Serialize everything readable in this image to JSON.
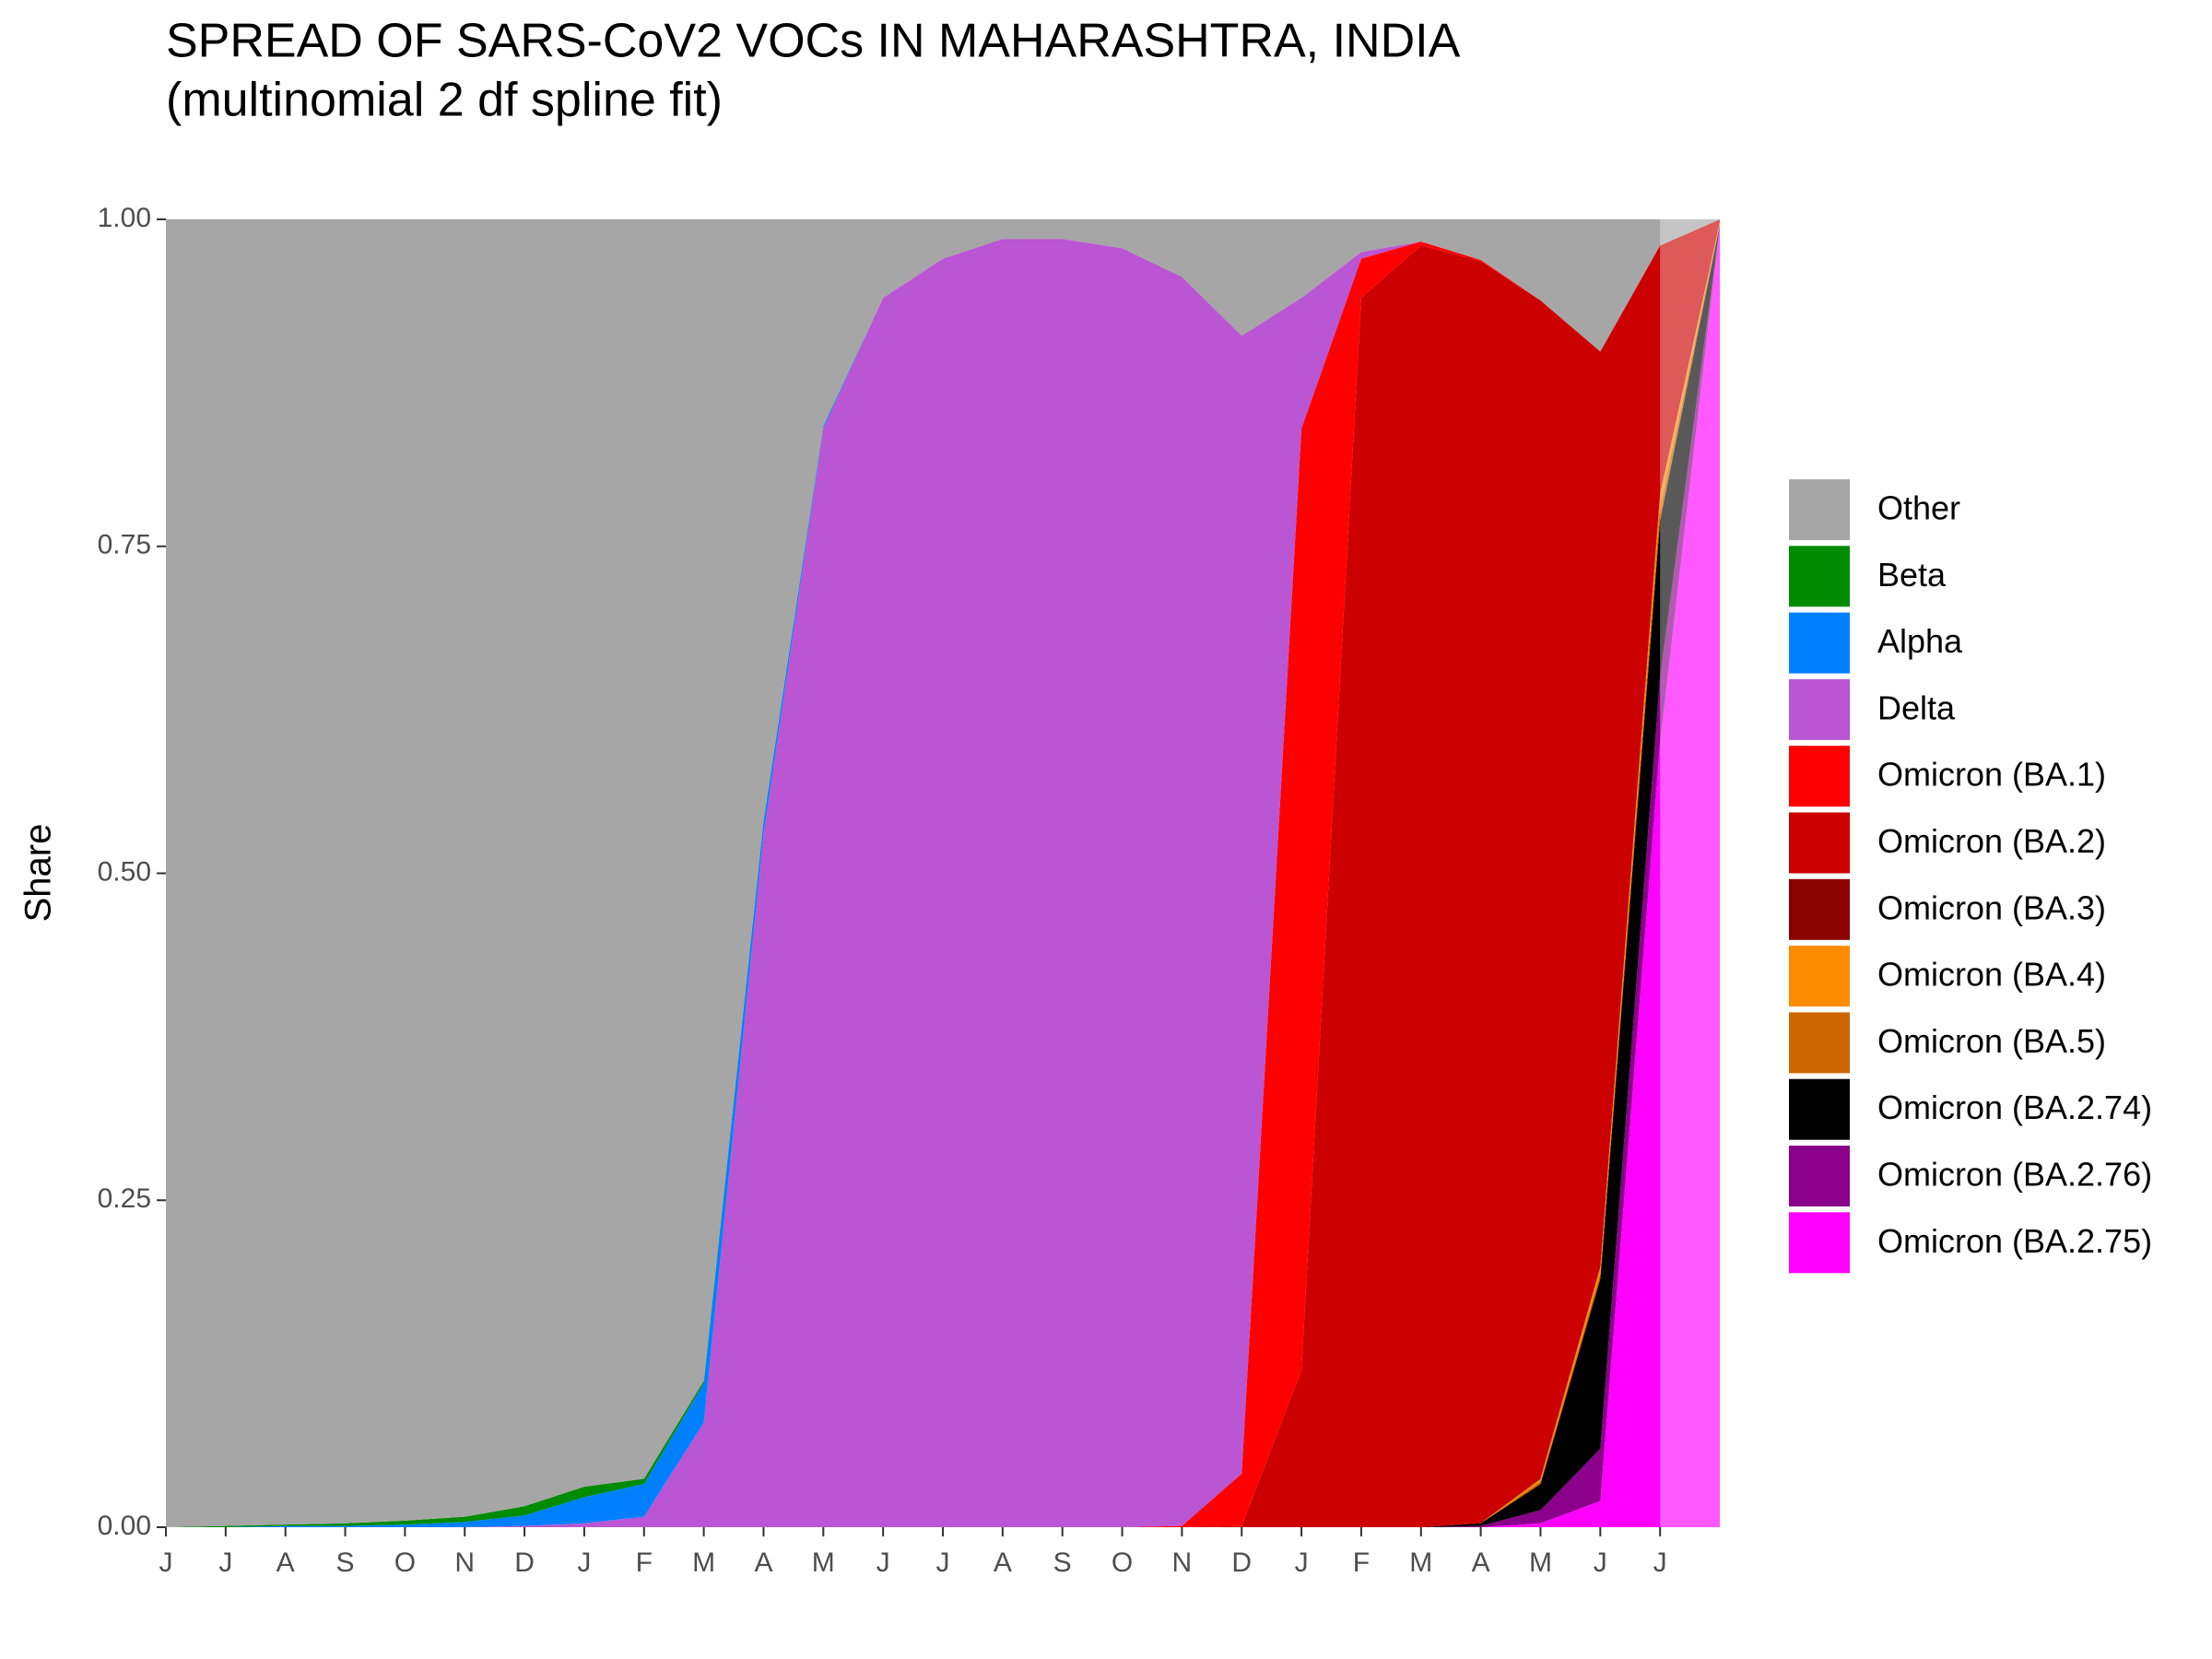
{
  "chart_data": {
    "type": "stacked_area",
    "title": "SPREAD OF SARS-CoV2 VOCs IN MAHARASHTRA, INDIA",
    "subtitle": "(multinomial 2 df spline fit)",
    "y_label": "Share",
    "categories": [
      "J",
      "J",
      "A",
      "S",
      "O",
      "N",
      "D",
      "J",
      "F",
      "M",
      "A",
      "M",
      "J",
      "J",
      "A",
      "S",
      "O",
      "N",
      "D",
      "J",
      "F",
      "M",
      "A",
      "M",
      "J",
      "J",
      null
    ],
    "ylim": [
      0,
      1
    ],
    "yticks": [
      {
        "value": 0,
        "label": "0.00"
      },
      {
        "value": 0.25,
        "label": "0.25"
      },
      {
        "value": 0.5,
        "label": "0.50"
      },
      {
        "value": 0.75,
        "label": "0.75"
      },
      {
        "value": 1,
        "label": "1.00"
      }
    ],
    "grid": false,
    "legend": "right",
    "series": [
      {
        "name": "Other",
        "color": "#a6a6a6",
        "values": [
          1,
          0.999,
          0.998,
          0.997,
          0.995,
          0.992,
          0.984,
          0.969,
          0.963,
          0.888,
          0.46,
          0.158,
          0.06,
          0.03,
          0.015,
          0.015,
          0.022,
          0.044,
          0.089,
          0.06,
          0.025,
          0.017,
          0.031,
          0.062,
          0.101,
          0.02,
          0
        ]
      },
      {
        "name": "Beta",
        "color": "#008b00",
        "values": [
          0,
          0.001,
          0.001,
          0.002,
          0.003,
          0.004,
          0.007,
          0.008,
          0.004,
          0.002,
          0,
          0,
          0,
          0,
          0,
          0,
          0,
          0,
          0,
          0,
          0,
          0,
          0,
          0,
          0,
          0,
          0
        ]
      },
      {
        "name": "Alpha",
        "color": "#0080ff",
        "values": [
          0,
          0,
          0.001,
          0.001,
          0.002,
          0.004,
          0.008,
          0.02,
          0.025,
          0.03,
          0.01,
          0.002,
          0,
          0,
          0,
          0,
          0,
          0,
          0,
          0,
          0,
          0,
          0,
          0,
          0,
          0,
          0
        ]
      },
      {
        "name": "Delta",
        "color": "#ba55d3",
        "values": [
          0,
          0,
          0,
          0,
          0,
          0,
          0.001,
          0.003,
          0.008,
          0.08,
          0.53,
          0.84,
          0.94,
          0.97,
          0.985,
          0.985,
          0.978,
          0.955,
          0.87,
          0.1,
          0.005,
          0,
          0,
          0,
          0,
          0,
          0
        ]
      },
      {
        "name": "Omicron (BA.1)",
        "color": "#ff0000",
        "values": [
          0,
          0,
          0,
          0,
          0,
          0,
          0,
          0,
          0,
          0,
          0,
          0,
          0,
          0,
          0,
          0,
          0,
          0.001,
          0.04,
          0.72,
          0.03,
          0.003,
          0.001,
          0,
          0,
          0,
          0
        ]
      },
      {
        "name": "Omicron (BA.2)",
        "color": "#cc0000",
        "values": [
          0,
          0,
          0,
          0,
          0,
          0,
          0,
          0,
          0,
          0,
          0,
          0,
          0,
          0,
          0,
          0,
          0,
          0,
          0.001,
          0.12,
          0.94,
          0.98,
          0.965,
          0.9,
          0.7,
          0.19,
          0.002
        ]
      },
      {
        "name": "Omicron (BA.3)",
        "color": "#8b0000",
        "values": [
          0,
          0,
          0,
          0,
          0,
          0,
          0,
          0,
          0,
          0,
          0,
          0,
          0,
          0,
          0,
          0,
          0,
          0,
          0,
          0,
          0,
          0,
          0,
          0.001,
          0,
          0,
          0
        ]
      },
      {
        "name": "Omicron (BA.4)",
        "color": "#ff8c00",
        "values": [
          0,
          0,
          0,
          0,
          0,
          0,
          0,
          0,
          0,
          0,
          0,
          0,
          0,
          0,
          0,
          0,
          0,
          0,
          0,
          0,
          0,
          0,
          0,
          0.002,
          0.005,
          0.01,
          0.001
        ]
      },
      {
        "name": "Omicron (BA.5)",
        "color": "#cd6600",
        "values": [
          0,
          0,
          0,
          0,
          0,
          0,
          0,
          0,
          0,
          0,
          0,
          0,
          0,
          0,
          0,
          0,
          0,
          0,
          0,
          0,
          0,
          0,
          0,
          0.002,
          0.004,
          0.01,
          0.001
        ]
      },
      {
        "name": "Omicron (BA.2.74)",
        "color": "#000000",
        "values": [
          0,
          0,
          0,
          0,
          0,
          0,
          0,
          0,
          0,
          0,
          0,
          0,
          0,
          0,
          0,
          0,
          0,
          0,
          0,
          0,
          0,
          0,
          0.002,
          0.02,
          0.13,
          0.12,
          0.001
        ]
      },
      {
        "name": "Omicron (BA.2.76)",
        "color": "#8b008b",
        "values": [
          0,
          0,
          0,
          0,
          0,
          0,
          0,
          0,
          0,
          0,
          0,
          0,
          0,
          0,
          0,
          0,
          0,
          0,
          0,
          0,
          0,
          0,
          0.001,
          0.01,
          0.04,
          0.05,
          0
        ]
      },
      {
        "name": "Omicron (BA.2.75)",
        "color": "#ff00ff",
        "values": [
          0,
          0,
          0,
          0,
          0,
          0,
          0,
          0,
          0,
          0,
          0,
          0,
          0,
          0,
          0,
          0,
          0,
          0,
          0,
          0,
          0,
          0,
          0,
          0.003,
          0.02,
          0.6,
          0.995
        ]
      }
    ]
  }
}
